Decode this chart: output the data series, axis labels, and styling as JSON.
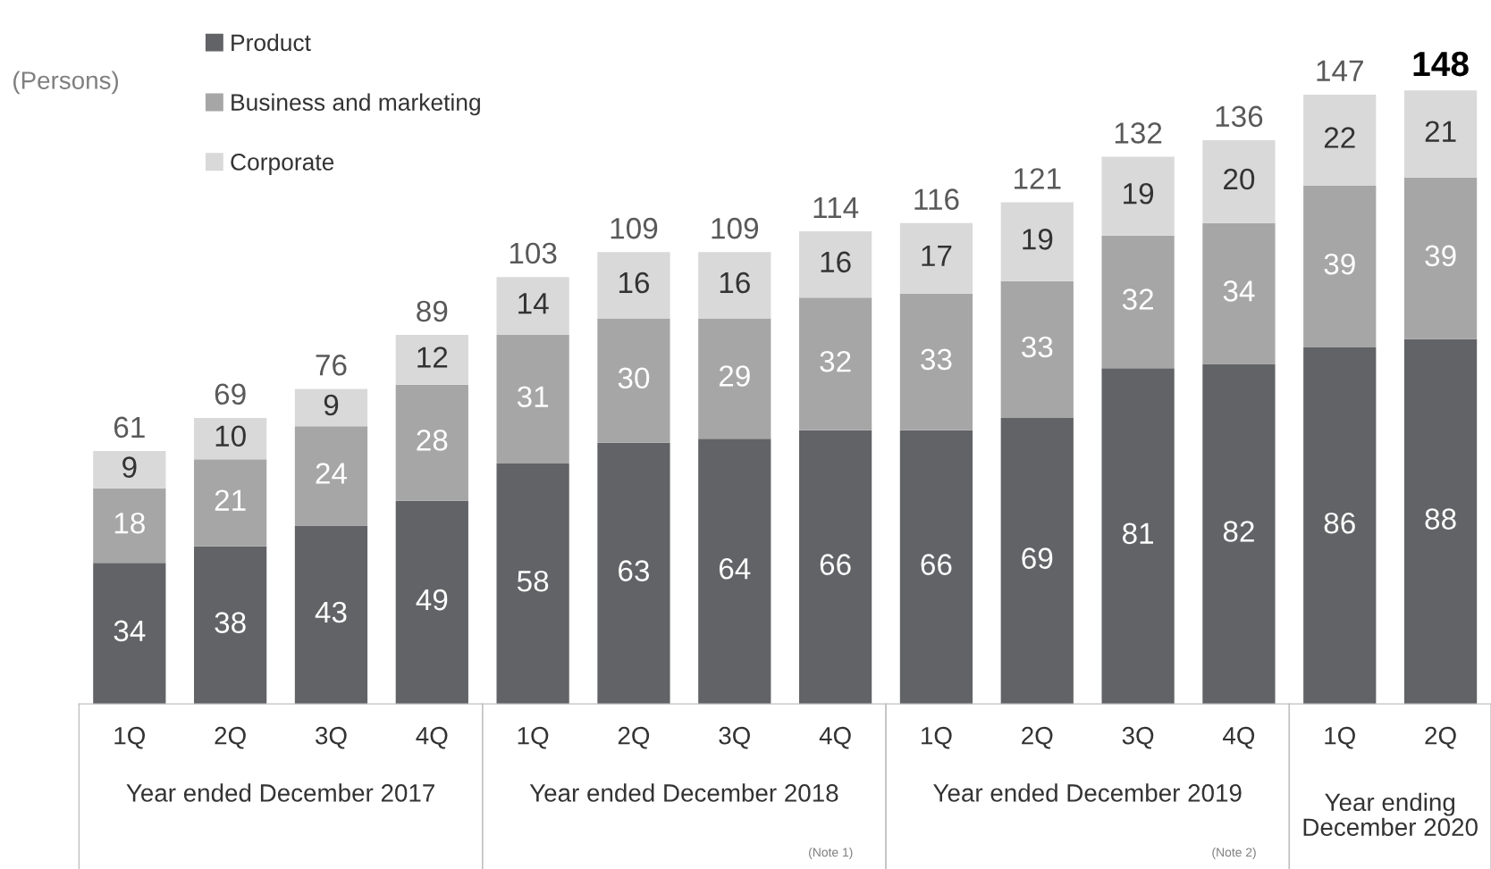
{
  "chart_data": {
    "type": "bar",
    "stacked": true,
    "data_labels": true,
    "legend": "top left",
    "grid": false,
    "tick_labels": "x",
    "ylabel": "(Persons)",
    "categories": [
      "1Q",
      "2Q",
      "3Q",
      "4Q",
      "1Q",
      "2Q",
      "3Q",
      "4Q",
      "1Q",
      "2Q",
      "3Q",
      "4Q",
      "1Q",
      "2Q"
    ],
    "series": [
      {
        "name": "Product",
        "color": "#626366",
        "values": [
          34,
          38,
          43,
          49,
          58,
          63,
          64,
          66,
          66,
          69,
          81,
          82,
          86,
          88
        ]
      },
      {
        "name": "Business and marketing",
        "color": "#a6a6a6",
        "values": [
          18,
          21,
          24,
          28,
          31,
          30,
          29,
          32,
          33,
          33,
          32,
          34,
          39,
          39
        ]
      },
      {
        "name": "Corporate",
        "color": "#d9d9d9",
        "values": [
          9,
          10,
          9,
          12,
          14,
          16,
          16,
          16,
          17,
          19,
          19,
          20,
          22,
          21
        ]
      }
    ],
    "totals": [
      "61",
      "69",
      "76",
      "89",
      "103",
      "109",
      "109",
      "114",
      "116",
      "121",
      "132",
      "136",
      "147",
      "148"
    ],
    "annotations": [
      "Year ended December 2017",
      "Year ended December 2018",
      "(Note 1)",
      "Year ended December 2019",
      "(Note 2)",
      "Year ending\nDecember 2020"
    ]
  }
}
